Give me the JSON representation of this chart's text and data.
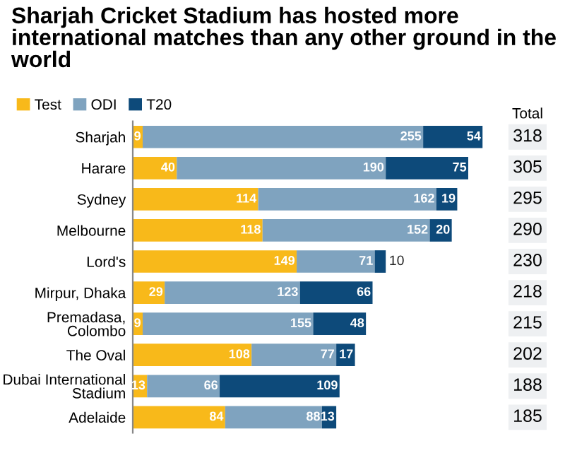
{
  "chart_data": {
    "type": "bar",
    "orientation": "horizontal",
    "stacked": true,
    "title": "Sharjah Cricket Stadium has hosted more international matches than any other ground in the world",
    "categories": [
      "Sharjah",
      "Harare",
      "Sydney",
      "Melbourne",
      "Lord's",
      "Mirpur, Dhaka",
      "Premadasa,\nColombo",
      "The Oval",
      "Dubai International\nStadium",
      "Adelaide"
    ],
    "series": [
      {
        "name": "Test",
        "color": "#f8b91a",
        "values": [
          9,
          40,
          114,
          118,
          149,
          29,
          9,
          108,
          13,
          84
        ]
      },
      {
        "name": "ODI",
        "color": "#7fa3bf",
        "values": [
          255,
          190,
          162,
          152,
          71,
          123,
          155,
          77,
          66,
          88
        ]
      },
      {
        "name": "T20",
        "color": "#0d4a7a",
        "values": [
          54,
          75,
          19,
          20,
          10,
          66,
          48,
          17,
          109,
          13
        ]
      }
    ],
    "data_labels": true,
    "annotations": [
      "Total",
      "318",
      "305",
      "295",
      "290",
      "230",
      "218",
      "215",
      "202",
      "188",
      "185"
    ],
    "tick_labels": "y",
    "legend": "top left"
  }
}
